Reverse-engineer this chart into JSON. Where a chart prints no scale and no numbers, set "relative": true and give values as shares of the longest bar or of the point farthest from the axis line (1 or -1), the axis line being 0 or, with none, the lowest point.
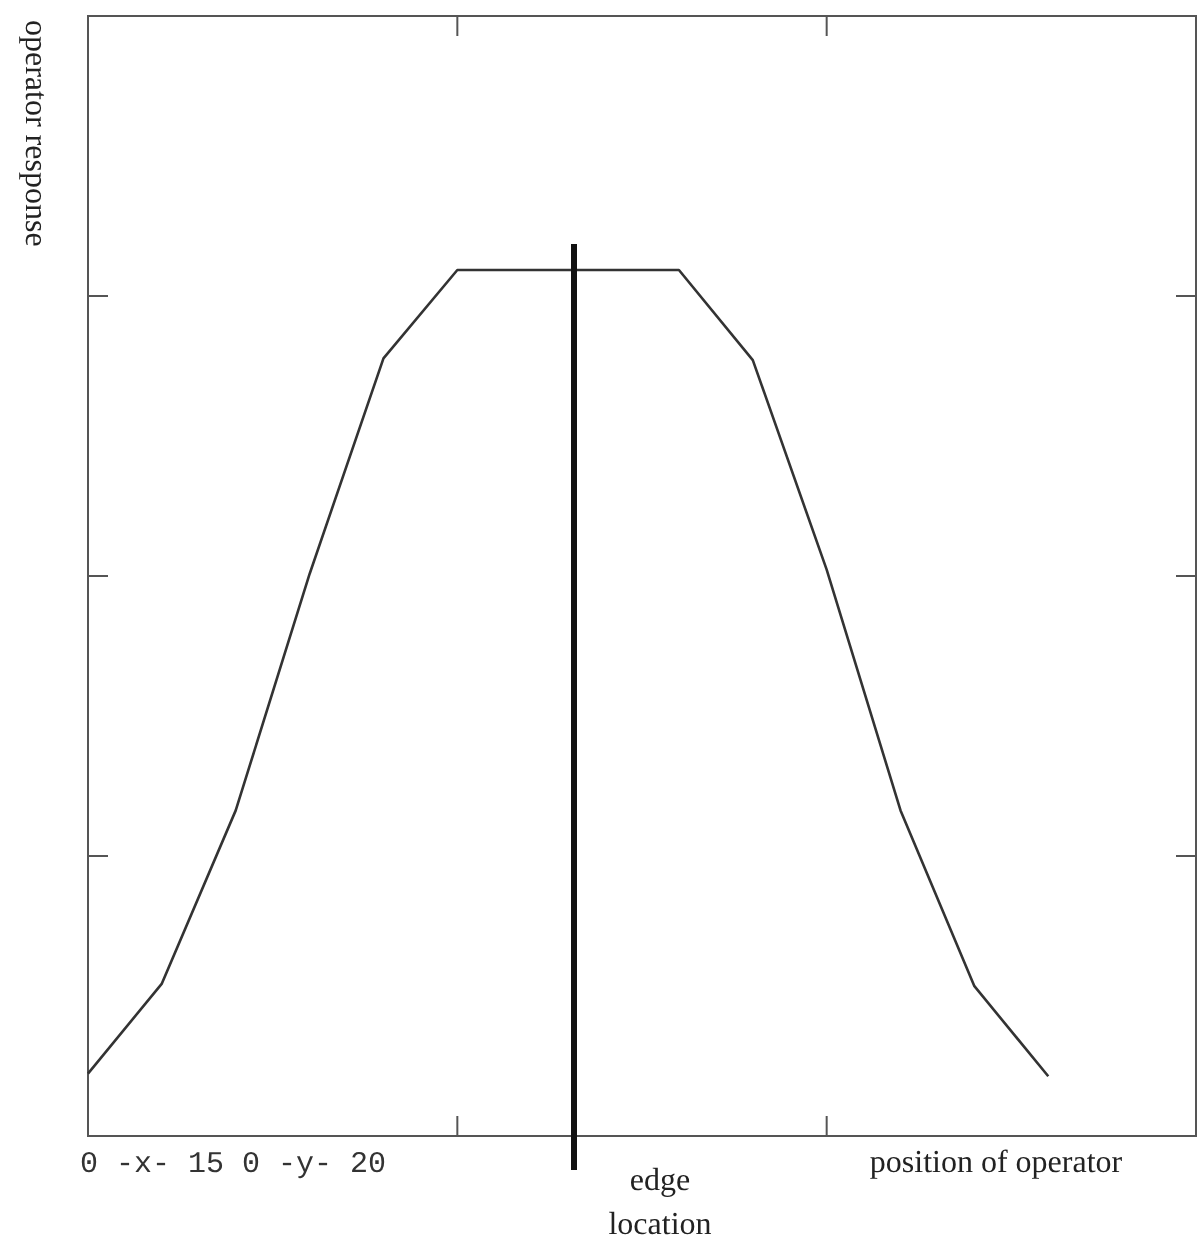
{
  "chart_data": {
    "type": "line",
    "relative": true,
    "ylabel": "operator response",
    "xlabel": "position of operator",
    "categories": [
      null,
      null,
      null,
      null,
      null,
      null,
      null,
      null,
      null,
      null,
      null,
      null,
      null,
      null,
      null,
      null
    ],
    "series": [
      {
        "color": "#333333",
        "values": [
          0.072,
          0.176,
          0.376,
          0.649,
          0.898,
          1,
          1,
          1,
          1,
          0.896,
          0.654,
          0.376,
          0.173,
          0.069,
          null,
          null
        ]
      }
    ],
    "annotations": [
      "0 -x- 15 0 -y- 20",
      "edge location"
    ],
    "marker": "none",
    "line_style": "solid",
    "grid": false
  }
}
